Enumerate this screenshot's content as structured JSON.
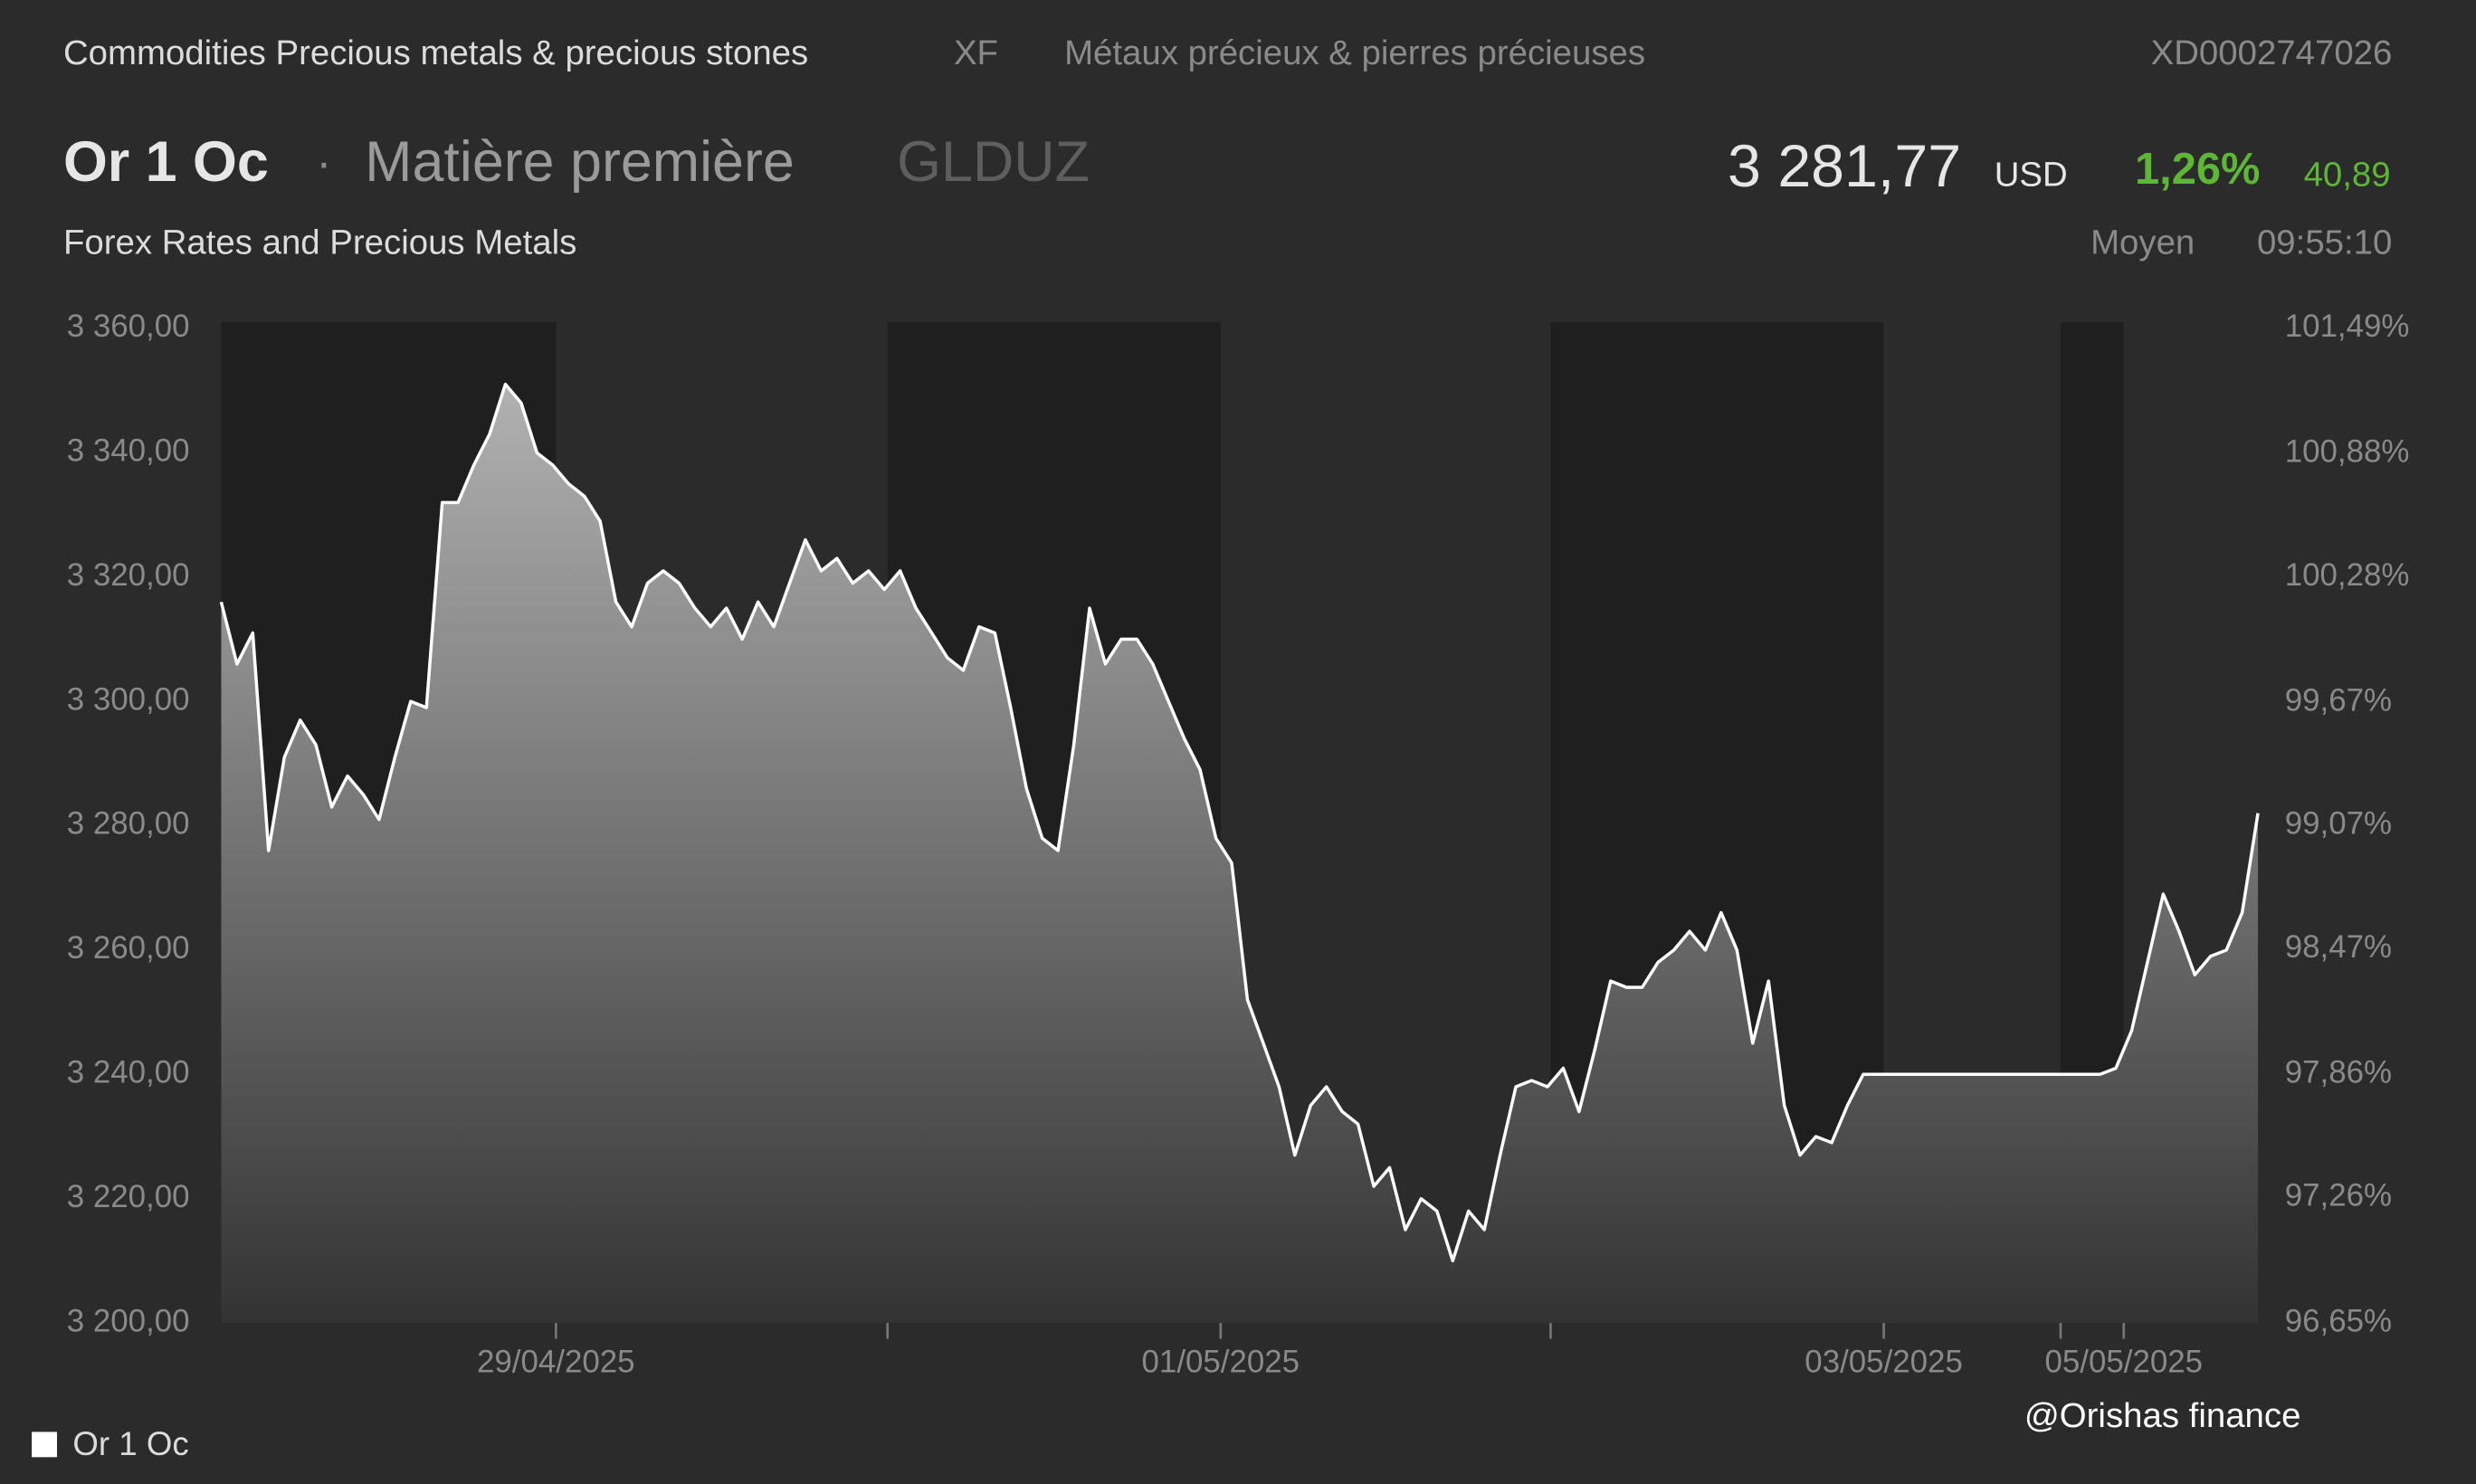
{
  "header": {
    "category": "Commodities Precious metals & precious stones",
    "exchange": "XF",
    "category_fr": "Métaux précieux & pierres précieuses",
    "isin": "XD0002747026",
    "name": "Or 1 Oc",
    "asset_type": "Matière première",
    "ticker": "GLDUZ",
    "price": "3 281,77",
    "currency": "USD",
    "change_pct": "1,26%",
    "change_abs": "40,89",
    "source": "Forex Rates and Precious Metals",
    "price_type": "Moyen",
    "time": "09:55:10"
  },
  "watermark": "@Orishas finance",
  "chart_data": {
    "type": "area",
    "series": [
      {
        "name": "Or 1 Oc",
        "color": "#ffffff",
        "values": [
          3316,
          3306,
          3311,
          3276,
          3291,
          3297,
          3293,
          3283,
          3288,
          3285,
          3281,
          3291,
          3300,
          3299,
          3332,
          3332,
          3338,
          3343,
          3351,
          3348,
          3340,
          3338,
          3335,
          3333,
          3329,
          3316,
          3312,
          3319,
          3321,
          3319,
          3315,
          3312,
          3315,
          3310,
          3316,
          3312,
          3319,
          3326,
          3321,
          3323,
          3319,
          3321,
          3318,
          3321,
          3315,
          3311,
          3307,
          3305,
          3312,
          3311,
          3299,
          3286,
          3278,
          3276,
          3293,
          3315,
          3306,
          3310,
          3310,
          3306,
          3300,
          3294,
          3289,
          3278,
          3274,
          3252,
          3245,
          3238,
          3227,
          3235,
          3238,
          3234,
          3232,
          3222,
          3225,
          3215,
          3220,
          3218,
          3210,
          3218,
          3215,
          3227,
          3238,
          3239,
          3238,
          3241,
          3234,
          3244,
          3255,
          3254,
          3254,
          3258,
          3260,
          3263,
          3260,
          3266,
          3260,
          3245,
          3255,
          3235,
          3227,
          3230,
          3229,
          3235,
          3240,
          3240,
          3240,
          3240,
          3240,
          3240,
          3240,
          3240,
          3240,
          3240,
          3240,
          3240,
          3240,
          3240,
          3240,
          3240,
          3241,
          3247,
          3258,
          3269,
          3263,
          3256,
          3259,
          3260,
          3266,
          3282
        ]
      }
    ],
    "xlim": [
      0,
      129
    ],
    "xticks": [
      {
        "value": 21.2,
        "label": "29/04/2025"
      },
      {
        "value": 63.3,
        "label": "01/05/2025"
      },
      {
        "value": 105.3,
        "label": "03/05/2025"
      },
      {
        "value": 120.5,
        "label": "05/05/2025"
      }
    ],
    "xticks_minor": [
      42.2,
      84.2,
      116.5
    ],
    "shaded_bands": [
      [
        0,
        21.2
      ],
      [
        42.2,
        63.3
      ],
      [
        84.2,
        105.3
      ],
      [
        116.5,
        120.5
      ]
    ],
    "ylim": [
      3200,
      3360
    ],
    "yticks": [
      {
        "value": 3360,
        "label": "3 360,00"
      },
      {
        "value": 3340,
        "label": "3 340,00"
      },
      {
        "value": 3320,
        "label": "3 320,00"
      },
      {
        "value": 3300,
        "label": "3 300,00"
      },
      {
        "value": 3280,
        "label": "3 280,00"
      },
      {
        "value": 3260,
        "label": "3 260,00"
      },
      {
        "value": 3240,
        "label": "3 240,00"
      },
      {
        "value": 3220,
        "label": "3 220,00"
      },
      {
        "value": 3200,
        "label": "3 200,00"
      }
    ],
    "y2lim": [
      96.65,
      101.49
    ],
    "y2ticks": [
      {
        "value": 101.49,
        "label": "101,49%"
      },
      {
        "value": 100.88,
        "label": "100,88%"
      },
      {
        "value": 100.28,
        "label": "100,28%"
      },
      {
        "value": 99.67,
        "label": "99,67%"
      },
      {
        "value": 99.07,
        "label": "99,07%"
      },
      {
        "value": 98.47,
        "label": "98,47%"
      },
      {
        "value": 97.86,
        "label": "97,86%"
      },
      {
        "value": 97.26,
        "label": "97,26%"
      },
      {
        "value": 96.65,
        "label": "96,65%"
      }
    ],
    "legend": "bottom-left"
  }
}
